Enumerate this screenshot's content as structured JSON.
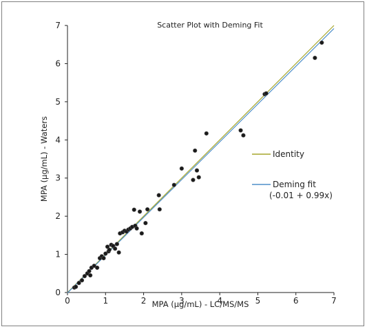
{
  "chart_data": {
    "type": "scatter",
    "title": "Scatter Plot with Deming Fit",
    "xlabel": "MPA (µg/mL) - LC/MS/MS",
    "ylabel": "MPA (µg/mL) - Waters",
    "xlim": [
      0,
      7
    ],
    "ylim": [
      0,
      7
    ],
    "xticks": [
      "0",
      "1",
      "2",
      "3",
      "4",
      "5",
      "6",
      "7"
    ],
    "yticks": [
      "0",
      "1",
      "2",
      "3",
      "4",
      "5",
      "6",
      "7"
    ],
    "grid": false,
    "legend_position": "right",
    "points": {
      "color": "#1a1a1a",
      "x": [
        0.18,
        0.22,
        0.3,
        0.38,
        0.45,
        0.52,
        0.57,
        0.6,
        0.63,
        0.7,
        0.78,
        0.85,
        0.9,
        0.95,
        1.0,
        1.05,
        1.08,
        1.1,
        1.15,
        1.2,
        1.25,
        1.3,
        1.35,
        1.38,
        1.45,
        1.5,
        1.55,
        1.6,
        1.65,
        1.7,
        1.75,
        1.78,
        1.82,
        1.9,
        1.95,
        2.05,
        2.1,
        2.4,
        2.42,
        2.8,
        3.0,
        3.3,
        3.35,
        3.4,
        3.45,
        3.65,
        4.55,
        4.62,
        5.18,
        5.22,
        6.5,
        6.68
      ],
      "y": [
        0.13,
        0.15,
        0.25,
        0.32,
        0.43,
        0.5,
        0.56,
        0.45,
        0.65,
        0.7,
        0.65,
        0.9,
        0.95,
        0.9,
        1.02,
        1.2,
        1.08,
        1.12,
        1.25,
        1.22,
        1.15,
        1.27,
        1.05,
        1.55,
        1.58,
        1.62,
        1.6,
        1.65,
        1.68,
        1.72,
        2.17,
        1.75,
        1.68,
        2.12,
        1.55,
        1.82,
        2.18,
        2.55,
        2.18,
        2.82,
        3.25,
        2.95,
        3.72,
        3.2,
        3.02,
        4.17,
        4.25,
        4.12,
        5.2,
        5.22,
        6.15,
        6.55
      ]
    },
    "lines": [
      {
        "name": "Identity",
        "intercept": 0,
        "slope": 1,
        "color": "#a5a52a"
      },
      {
        "name": "Deming fit",
        "label_line2": "(-0.01 + 0.99x)",
        "intercept": -0.01,
        "slope": 0.99,
        "color": "#4f8fc9"
      }
    ]
  }
}
